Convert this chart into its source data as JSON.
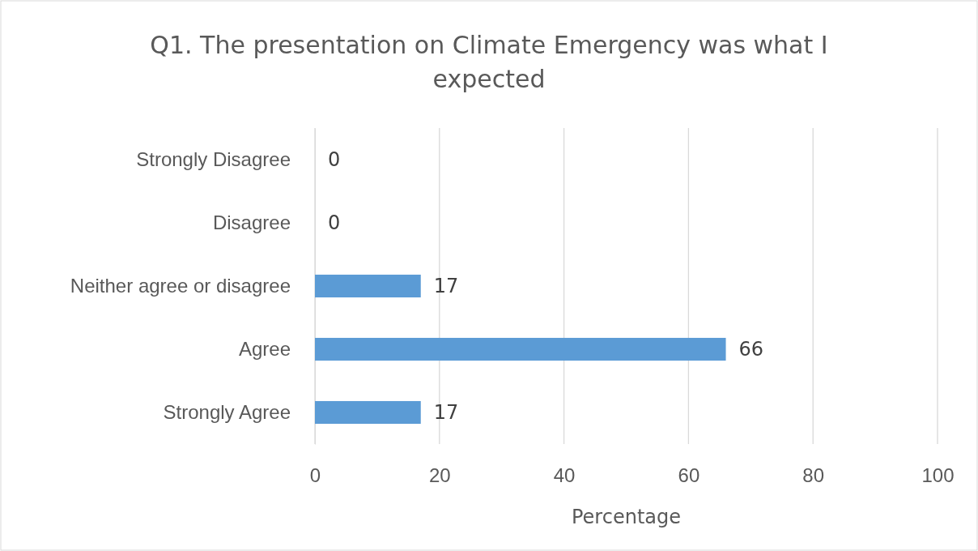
{
  "chart_data": {
    "type": "bar",
    "orientation": "horizontal",
    "title": "Q1. The presentation on Climate Emergency was what I expected",
    "xlabel": "Percentage",
    "categories": [
      "Strongly Disagree",
      "Disagree",
      "Neither agree or disagree",
      "Agree",
      "Strongly Agree"
    ],
    "values": [
      0,
      0,
      17,
      66,
      17
    ],
    "color": "#5b9bd5",
    "xlim": [
      0,
      100
    ],
    "xticks": [
      0,
      20,
      40,
      60,
      80,
      100
    ],
    "grid": "x",
    "data_labels": true
  }
}
